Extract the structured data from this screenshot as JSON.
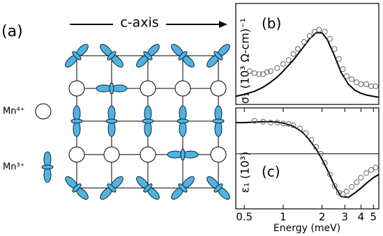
{
  "panel_a": {
    "label": "(a)",
    "axis_label": "c-axis",
    "legend": [
      {
        "label": "Mn⁴⁺"
      },
      {
        "label": "Mn³⁺"
      }
    ]
  },
  "chart_data": [
    {
      "type": "line",
      "label": "(b)",
      "y_label": "σ₁ (10³ Ω-cm)⁻¹",
      "xscale": "log",
      "xlim": [
        0.43,
        5.5
      ],
      "ylim": [
        0,
        1
      ],
      "series": [
        {
          "style": "line",
          "color": "#000000",
          "x": [
            0.43,
            0.5,
            0.6,
            0.7,
            0.8,
            0.9,
            1.0,
            1.2,
            1.4,
            1.6,
            1.8,
            2.0,
            2.2,
            2.5,
            2.8,
            3.2,
            3.6,
            4,
            4.5,
            5,
            5.5
          ],
          "values": [
            0.08,
            0.1,
            0.13,
            0.17,
            0.22,
            0.27,
            0.33,
            0.44,
            0.55,
            0.65,
            0.71,
            0.71,
            0.64,
            0.48,
            0.32,
            0.2,
            0.14,
            0.11,
            0.09,
            0.08,
            0.07
          ]
        },
        {
          "style": "markers",
          "color": "#666666",
          "x": [
            0.55,
            0.6,
            0.65,
            0.7,
            0.75,
            0.8,
            0.9,
            1.0,
            1.1,
            1.2,
            1.3,
            1.45,
            1.6,
            1.75,
            1.9,
            2.1,
            2.3,
            2.5,
            2.7,
            2.9,
            3.1,
            3.4,
            3.7,
            4.0,
            4.4,
            4.8,
            5.2
          ],
          "values": [
            0.33,
            0.31,
            0.3,
            0.3,
            0.32,
            0.33,
            0.36,
            0.4,
            0.44,
            0.5,
            0.55,
            0.62,
            0.68,
            0.72,
            0.74,
            0.72,
            0.65,
            0.55,
            0.45,
            0.35,
            0.28,
            0.25,
            0.22,
            0.2,
            0.2,
            0.18,
            0.18
          ]
        }
      ]
    },
    {
      "type": "line",
      "label": "(c)",
      "y_label": "ε₁ (10³)",
      "x_label": "Energy (meV)",
      "xscale": "log",
      "xlim": [
        0.43,
        5.5
      ],
      "ylim": [
        -1.2,
        1
      ],
      "xticks": [
        0.5,
        1,
        2,
        3,
        4,
        5
      ],
      "zero_line": true,
      "series": [
        {
          "style": "line",
          "color": "#000000",
          "x": [
            0.43,
            0.5,
            0.6,
            0.7,
            0.8,
            0.9,
            1.0,
            1.2,
            1.4,
            1.6,
            1.8,
            2.0,
            2.2,
            2.5,
            2.8,
            3.2,
            3.6,
            4,
            4.5,
            5,
            5.5
          ],
          "values": [
            0.68,
            0.68,
            0.69,
            0.7,
            0.7,
            0.69,
            0.67,
            0.6,
            0.48,
            0.3,
            0.1,
            -0.12,
            -0.35,
            -0.7,
            -0.93,
            -0.95,
            -0.85,
            -0.75,
            -0.62,
            -0.52,
            -0.45
          ]
        },
        {
          "style": "markers",
          "color": "#666666",
          "x": [
            0.6,
            0.7,
            0.8,
            0.9,
            1.0,
            1.1,
            1.2,
            1.35,
            1.5,
            1.65,
            1.8,
            1.95,
            2.1,
            2.3,
            2.5,
            2.7,
            2.9,
            3.1,
            3.4,
            3.7,
            4.0,
            4.4,
            4.8,
            5.2
          ],
          "values": [
            0.72,
            0.7,
            0.68,
            0.68,
            0.66,
            0.65,
            0.62,
            0.55,
            0.45,
            0.3,
            0.15,
            0.0,
            -0.2,
            -0.45,
            -0.7,
            -0.85,
            -0.88,
            -0.82,
            -0.72,
            -0.62,
            -0.52,
            -0.42,
            -0.35,
            -0.3
          ]
        }
      ]
    }
  ]
}
